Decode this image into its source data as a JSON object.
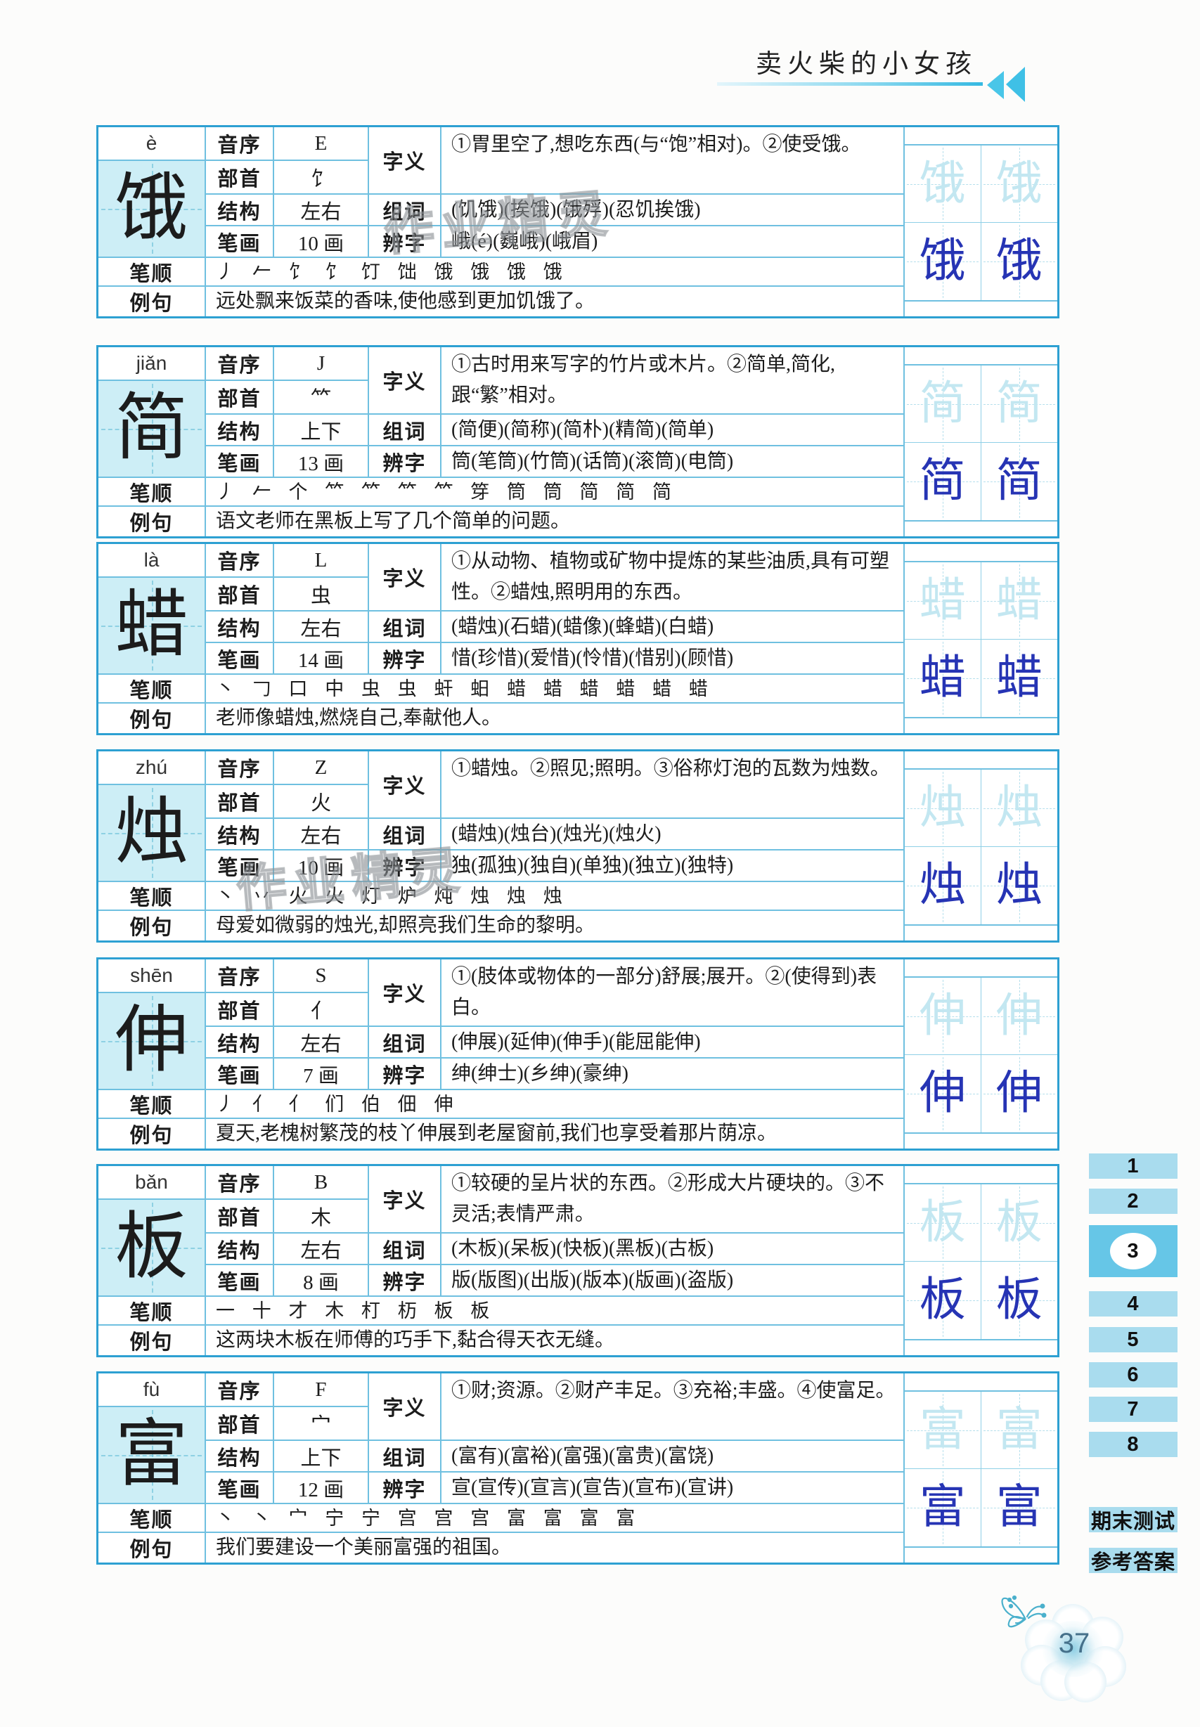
{
  "header": {
    "title": "卖火柴的小女孩"
  },
  "labels": {
    "yinxu": "音序",
    "bushou": "部首",
    "jiegou": "结构",
    "bihua": "笔画",
    "ziyi": "字义",
    "zuci": "组词",
    "bianzi": "辨字",
    "bishun": "笔顺",
    "liju": "例句"
  },
  "watermark": "作业精灵",
  "entries": [
    {
      "pinyin": "è",
      "char": "饿",
      "yinxu": "E",
      "bushou": "饣",
      "jiegou": "左右",
      "bihua": "10 画",
      "ziyi": "①胃里空了,想吃东西(与“饱”相对)。②使受饿。",
      "zuci": "(饥饿)(挨饿)(饿殍)(忍饥挨饿)",
      "bianzi": "峨(é)(巍峨)(峨眉)",
      "bishun": "丿 𠂉 饣 饣 饤 饳 饿 饿 饿 饿",
      "liju": "远处飘来饭菜的香味,使他感到更加饥饿了。"
    },
    {
      "pinyin": "jiǎn",
      "char": "简",
      "yinxu": "J",
      "bushou": "⺮",
      "jiegou": "上下",
      "bihua": "13 画",
      "ziyi": "①古时用来写字的竹片或木片。②简单,简化,跟“繁”相对。",
      "zuci": "(简便)(简称)(简朴)(精简)(简单)",
      "bianzi": "筒(笔筒)(竹筒)(话筒)(滚筒)(电筒)",
      "bishun": "丿 𠂉 个 𥫗 𥫗 𥫗 𥫗 笌 筒 筒 简 简 简",
      "liju": "语文老师在黑板上写了几个简单的问题。"
    },
    {
      "pinyin": "là",
      "char": "蜡",
      "yinxu": "L",
      "bushou": "虫",
      "jiegou": "左右",
      "bihua": "14 画",
      "ziyi": "①从动物、植物或矿物中提炼的某些油质,具有可塑性。②蜡烛,照明用的东西。",
      "zuci": "(蜡烛)(石蜡)(蜡像)(蜂蜡)(白蜡)",
      "bianzi": "惜(珍惜)(爱惜)(怜惜)(惜别)(顾惜)",
      "bishun": "丶 𠃌 口 中 虫 虫 虷 蚎 蜡 蜡 蜡 蜡 蜡 蜡",
      "liju": "老师像蜡烛,燃烧自己,奉献他人。"
    },
    {
      "pinyin": "zhú",
      "char": "烛",
      "yinxu": "Z",
      "bushou": "火",
      "jiegou": "左右",
      "bihua": "10 画",
      "ziyi": "①蜡烛。②照见;照明。③俗称灯泡的瓦数为烛数。",
      "zuci": "(蜡烛)(烛台)(烛光)(烛火)",
      "bianzi": "独(孤独)(独自)(单独)(独立)(独特)",
      "bishun": "丶 丷 火 火 灯 炉 炖 烛 烛 烛",
      "liju": "母爱如微弱的烛光,却照亮我们生命的黎明。"
    },
    {
      "pinyin": "shēn",
      "char": "伸",
      "yinxu": "S",
      "bushou": "亻",
      "jiegou": "左右",
      "bihua": "7 画",
      "ziyi": "①(肢体或物体的一部分)舒展;展开。②(使得到)表白。",
      "zuci": "(伸展)(延伸)(伸手)(能屈能伸)",
      "bianzi": "绅(绅士)(乡绅)(豪绅)",
      "bishun": "丿 亻 亻 们 伯 佃 伸",
      "liju": "夏天,老槐树繁茂的枝丫伸展到老屋窗前,我们也享受着那片荫凉。"
    },
    {
      "pinyin": "bǎn",
      "char": "板",
      "yinxu": "B",
      "bushou": "木",
      "jiegou": "左右",
      "bihua": "8 画",
      "ziyi": "①较硬的呈片状的东西。②形成大片硬块的。③不灵活;表情严肃。",
      "zuci": "(木板)(呆板)(快板)(黑板)(古板)",
      "bianzi": "版(版图)(出版)(版本)(版画)(盗版)",
      "bishun": "一 十 才 木 朾 杤 板 板",
      "liju": "这两块木板在师傅的巧手下,黏合得天衣无缝。"
    },
    {
      "pinyin": "fù",
      "char": "富",
      "yinxu": "F",
      "bushou": "宀",
      "jiegou": "上下",
      "bihua": "12 画",
      "ziyi": "①财;资源。②财产丰足。③充裕;丰盛。④使富足。",
      "zuci": "(富有)(富裕)(富强)(富贵)(富饶)",
      "bianzi": "宣(宣传)(宣言)(宣告)(宣布)(宣讲)",
      "bishun": "丶 丶 宀 宁 宁 宫 宫 宫 富 富 富 富",
      "liju": "我们要建设一个美丽富强的祖国。"
    }
  ],
  "sidebar": {
    "items": [
      "1",
      "2",
      "3",
      "4",
      "5",
      "6",
      "7",
      "8",
      "期末测试",
      "参考答案"
    ],
    "active_tab": "3"
  },
  "page_number": "37",
  "colors": {
    "table_outer_border": "#2da0d2",
    "table_grid_line": "#6fc0e0",
    "char_cell_bg": "#cdeef6",
    "trace_char": "#c3e7f1",
    "ink_char": "#2634b4",
    "tab_bg": "#a9dcee",
    "tab_active_bg": "#66c6e7",
    "header_accent": "#3fc0e6"
  }
}
